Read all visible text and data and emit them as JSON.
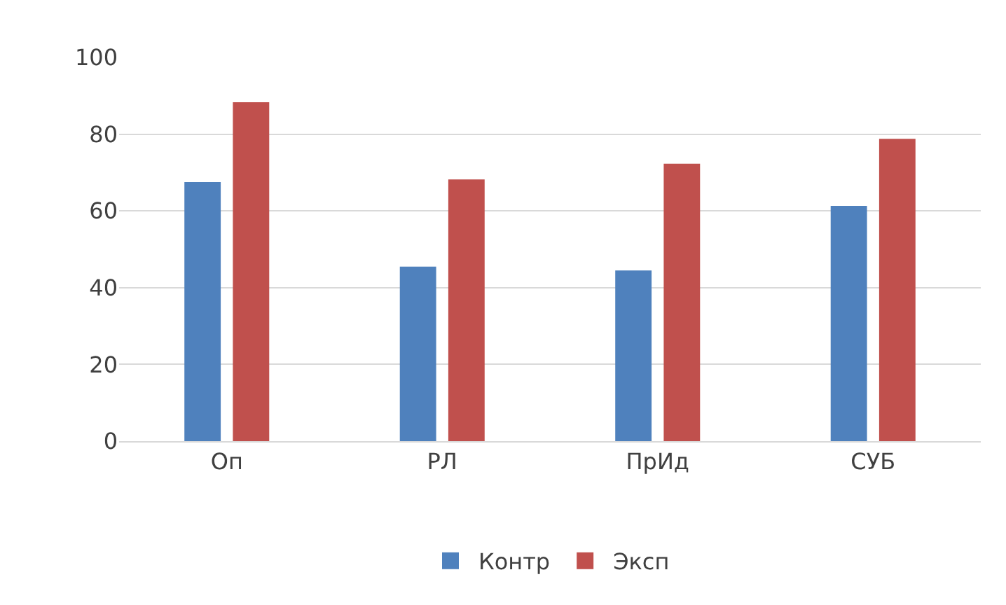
{
  "chart_data": {
    "type": "bar",
    "categories": [
      "Оп",
      "РЛ",
      "ПрИд",
      "СУБ"
    ],
    "series": [
      {
        "name": "Контр",
        "color": "#4f81bd",
        "values": [
          67.5,
          45.5,
          44.5,
          61.3
        ]
      },
      {
        "name": "Эксп",
        "color": "#c0504d",
        "values": [
          88.3,
          68.2,
          72.3,
          78.8
        ]
      }
    ],
    "ylim": [
      0,
      100
    ],
    "yticks": [
      0,
      20,
      40,
      60,
      80,
      100
    ],
    "grid": "y",
    "legend": "bottom"
  }
}
